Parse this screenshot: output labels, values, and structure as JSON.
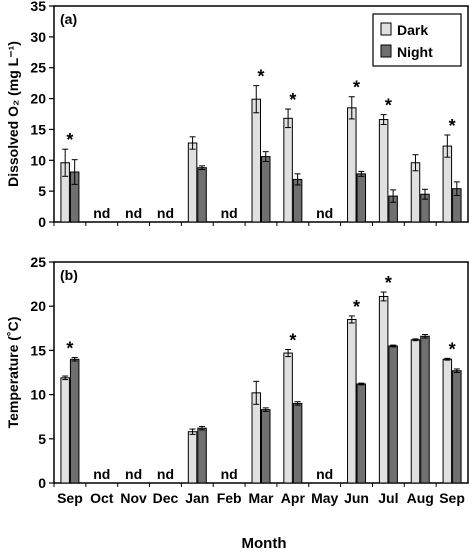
{
  "figure": {
    "xlabel": "Month",
    "legend": {
      "dark_label": "Dark",
      "night_label": "Night"
    },
    "colors": {
      "dark": "#e0e0e0",
      "night": "#707070",
      "stroke": "#000000"
    }
  },
  "chart_data": [
    {
      "type": "bar",
      "panel_label": "(a)",
      "ylabel": "Dissolved O₂ (mg L⁻¹)",
      "ylim": [
        0,
        35
      ],
      "yticks": [
        0,
        5,
        10,
        15,
        20,
        25,
        30,
        35
      ],
      "categories": [
        "Sep",
        "Oct",
        "Nov",
        "Dec",
        "Jan",
        "Feb",
        "Mar",
        "Apr",
        "May",
        "Jun",
        "Jul",
        "Aug",
        "Sep"
      ],
      "series": [
        {
          "name": "Dark",
          "values": [
            9.6,
            null,
            null,
            null,
            12.8,
            null,
            19.9,
            16.8,
            null,
            18.5,
            16.6,
            9.6,
            12.3
          ],
          "errors": [
            2.2,
            null,
            null,
            null,
            1.0,
            null,
            2.2,
            1.5,
            null,
            1.8,
            0.8,
            1.3,
            1.8
          ]
        },
        {
          "name": "Night",
          "values": [
            8.1,
            null,
            null,
            null,
            8.8,
            null,
            10.6,
            6.9,
            null,
            7.8,
            4.2,
            4.5,
            5.4
          ],
          "errors": [
            2.0,
            null,
            null,
            null,
            0.3,
            null,
            0.8,
            0.9,
            null,
            0.4,
            1.0,
            0.8,
            1.1
          ]
        }
      ],
      "nd_categories": [
        1,
        2,
        3,
        5,
        8
      ],
      "significant_categories": [
        0,
        6,
        7,
        9,
        10,
        12
      ],
      "legend": "top-right",
      "grid": false
    },
    {
      "type": "bar",
      "panel_label": "(b)",
      "ylabel": "Temperature (˚C)",
      "ylim": [
        0,
        25
      ],
      "yticks": [
        0,
        5,
        10,
        15,
        20,
        25
      ],
      "categories": [
        "Sep",
        "Oct",
        "Nov",
        "Dec",
        "Jan",
        "Feb",
        "Mar",
        "Apr",
        "May",
        "Jun",
        "Jul",
        "Aug",
        "Sep"
      ],
      "series": [
        {
          "name": "Dark",
          "values": [
            11.9,
            null,
            null,
            null,
            5.8,
            null,
            10.2,
            14.7,
            null,
            18.5,
            21.1,
            16.2,
            14.0
          ],
          "errors": [
            0.2,
            null,
            null,
            null,
            0.3,
            null,
            1.3,
            0.4,
            null,
            0.4,
            0.5,
            0.1,
            0.1
          ]
        },
        {
          "name": "Night",
          "values": [
            14.0,
            null,
            null,
            null,
            6.2,
            null,
            8.3,
            9.0,
            null,
            11.2,
            15.5,
            16.6,
            12.7
          ],
          "errors": [
            0.2,
            null,
            null,
            null,
            0.2,
            null,
            0.2,
            0.2,
            null,
            0.1,
            0.1,
            0.2,
            0.2
          ]
        }
      ],
      "nd_categories": [
        1,
        2,
        3,
        5,
        8
      ],
      "significant_categories": [
        0,
        7,
        9,
        10,
        12
      ],
      "grid": false
    }
  ],
  "annotations": {
    "nd_text": "nd",
    "significance_text": "*"
  }
}
